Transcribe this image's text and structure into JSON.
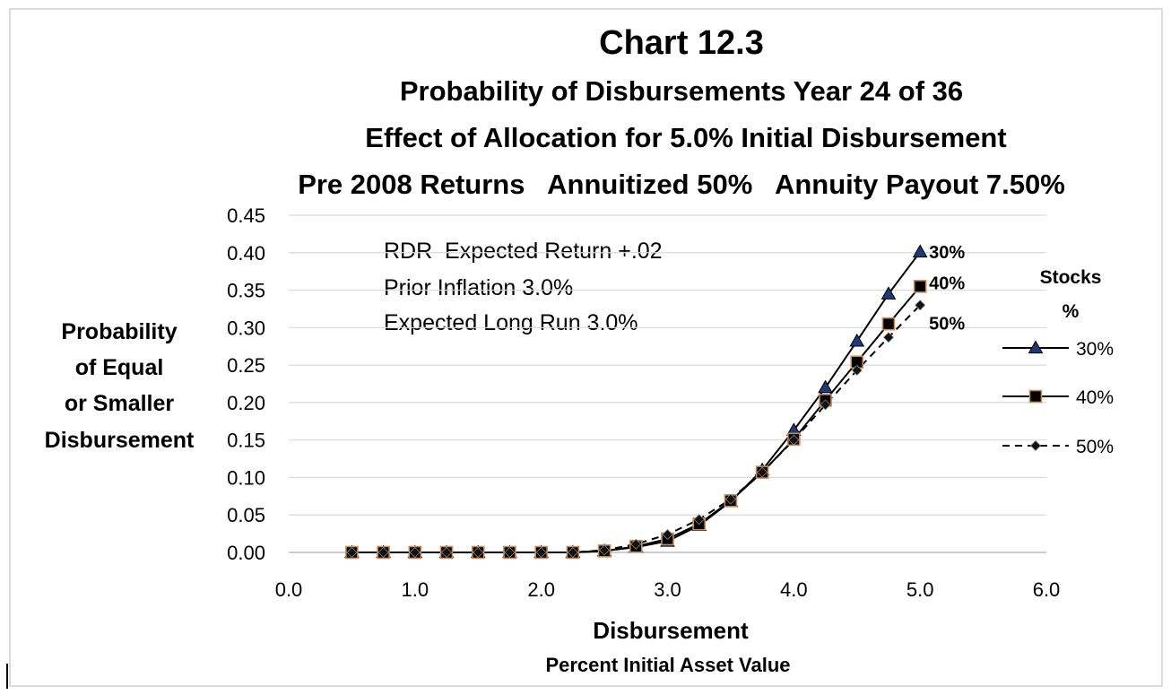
{
  "chart_data": {
    "type": "line",
    "title": "Chart 12.3",
    "subtitles": [
      "Probability of Disbursements Year 24 of 36",
      "Effect of Allocation for 5.0% Initial Disbursement",
      "Pre 2008 Returns   Annuitized 50%   Annuity Payout 7.50%"
    ],
    "ylabel_lines": [
      "Probability",
      "of Equal",
      "or Smaller",
      "Disbursement"
    ],
    "xlabel": "Disbursement",
    "xlabel_sub": "Percent Initial Asset Value",
    "xlim": [
      0,
      6
    ],
    "ylim": [
      0,
      0.45
    ],
    "x_ticks": [
      "0.0",
      "1.0",
      "2.0",
      "3.0",
      "4.0",
      "5.0",
      "6.0"
    ],
    "y_ticks": [
      "0.00",
      "0.05",
      "0.10",
      "0.15",
      "0.20",
      "0.25",
      "0.30",
      "0.35",
      "0.40",
      "0.45"
    ],
    "grid": "horizontal",
    "annotations": [
      "RDR  Expected Return +.02",
      "Prior Inflation 3.0%",
      "Expected Long Run 3.0%"
    ],
    "legend_title": [
      "Stocks",
      "%"
    ],
    "legend_position": "right",
    "x": [
      0.5,
      0.75,
      1.0,
      1.25,
      1.5,
      1.75,
      2.0,
      2.25,
      2.5,
      2.75,
      3.0,
      3.25,
      3.5,
      3.75,
      4.0,
      4.25,
      4.5,
      4.75,
      5.0
    ],
    "series": [
      {
        "name": "30%",
        "end_label": "30%",
        "marker": "triangle",
        "line": "solid",
        "marker_color": "#1f3a7a",
        "values": [
          0,
          0,
          0,
          0,
          0,
          0,
          0,
          0,
          0.002,
          0.007,
          0.015,
          0.036,
          0.068,
          0.11,
          0.163,
          0.22,
          0.282,
          0.345,
          0.401
        ]
      },
      {
        "name": "40%",
        "end_label": "40%",
        "marker": "square",
        "line": "solid",
        "marker_color": "#000000",
        "values": [
          0,
          0,
          0,
          0,
          0,
          0,
          0,
          0,
          0.002,
          0.008,
          0.018,
          0.038,
          0.069,
          0.107,
          0.151,
          0.203,
          0.254,
          0.305,
          0.355
        ]
      },
      {
        "name": "50%",
        "end_label": "50%",
        "marker": "diamond",
        "line": "dashed",
        "marker_color": "#111111",
        "values": [
          0,
          0,
          0,
          0,
          0,
          0,
          0,
          0,
          0.003,
          0.011,
          0.024,
          0.044,
          0.071,
          0.107,
          0.15,
          0.197,
          0.243,
          0.287,
          0.33
        ]
      }
    ]
  }
}
